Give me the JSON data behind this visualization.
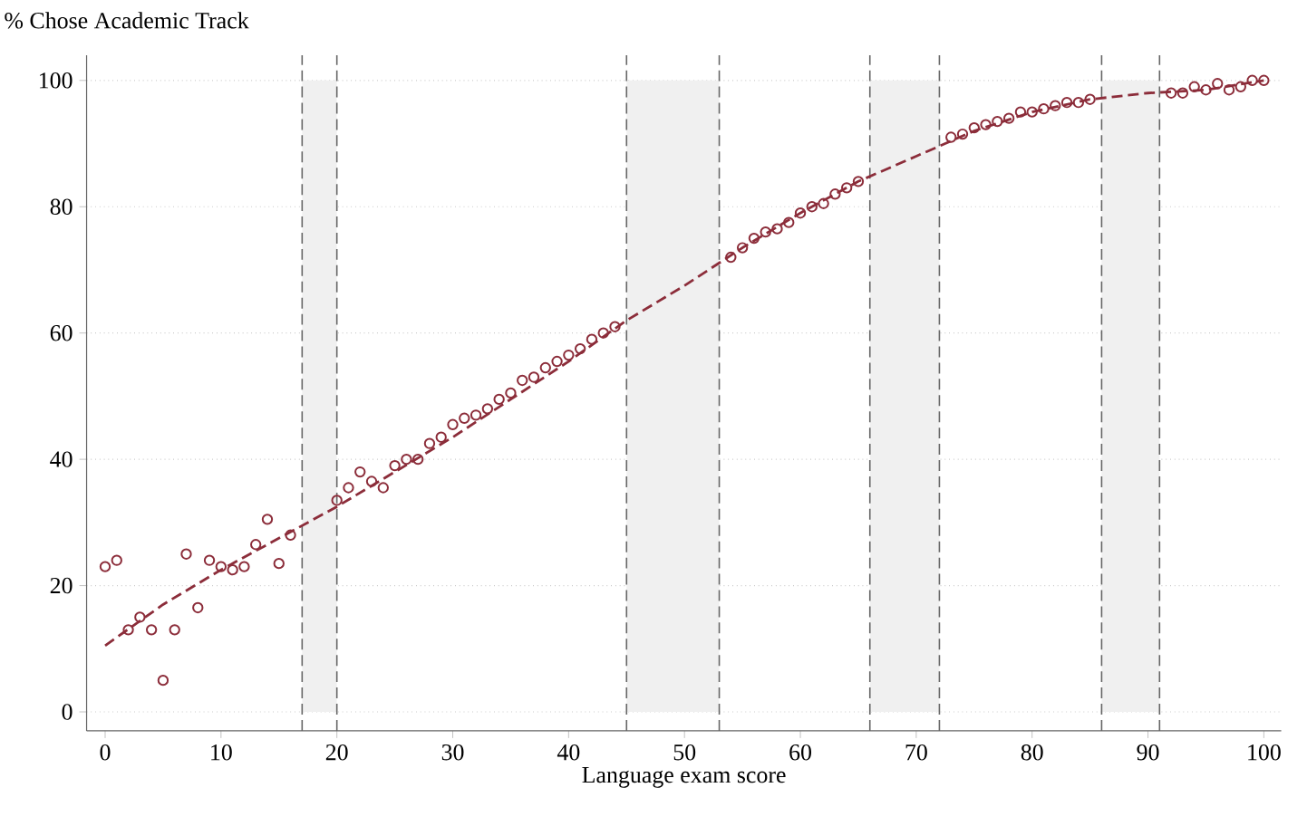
{
  "chart_data": {
    "type": "scatter",
    "ylabel": "% Chose Academic Track",
    "xlabel": "Language exam score",
    "xlim": [
      -1.6,
      101.5
    ],
    "ylim": [
      -3,
      104
    ],
    "xticks": [
      0,
      10,
      20,
      30,
      40,
      50,
      60,
      70,
      80,
      90,
      100
    ],
    "yticks": [
      0,
      20,
      40,
      60,
      80,
      100
    ],
    "grid": "y",
    "series": [
      {
        "marker": "circle",
        "color": "#8c2d3a",
        "x": [
          0,
          1,
          2,
          3,
          4,
          5,
          6,
          7,
          8,
          9,
          10,
          11,
          12,
          13,
          14,
          15,
          16,
          20,
          21,
          22,
          23,
          24,
          25,
          26,
          27,
          28,
          29,
          30,
          31,
          32,
          33,
          34,
          35,
          36,
          37,
          38,
          39,
          40,
          41,
          42,
          43,
          44,
          54,
          55,
          56,
          57,
          58,
          59,
          60,
          61,
          62,
          63,
          64,
          65,
          73,
          74,
          75,
          76,
          77,
          78,
          79,
          80,
          81,
          82,
          83,
          84,
          85,
          92,
          93,
          94,
          95,
          96,
          97,
          98,
          99,
          100
        ],
        "values": [
          23,
          24,
          13,
          15,
          13,
          5,
          13,
          25,
          16.5,
          24,
          23,
          22.5,
          23,
          26.5,
          30.5,
          23.5,
          28,
          33.5,
          35.5,
          38,
          36.5,
          35.5,
          39,
          40,
          40,
          42.5,
          43.5,
          45.5,
          46.5,
          47,
          48,
          49.5,
          50.5,
          52.5,
          53,
          54.5,
          55.5,
          56.5,
          57.5,
          59,
          60,
          61,
          72,
          73.5,
          75,
          76,
          76.5,
          77.5,
          79,
          80,
          80.5,
          82,
          83,
          84,
          91,
          91.5,
          92.5,
          93,
          93.5,
          94,
          95,
          95,
          95.5,
          96,
          96.5,
          96.5,
          97,
          98,
          98,
          99,
          98.5,
          99.5,
          98.5,
          99,
          100,
          100
        ]
      },
      {
        "type": "line",
        "line_style": "dashed",
        "color": "#8c2d3a",
        "x": [
          0,
          5,
          10,
          15,
          20,
          25,
          30,
          35,
          40,
          45,
          50,
          55,
          60,
          65,
          70,
          75,
          80,
          85,
          90,
          95,
          100
        ],
        "values": [
          10.5,
          17,
          22.5,
          27.5,
          32.5,
          38,
          43.5,
          49.5,
          55.5,
          62,
          67.5,
          73.5,
          79,
          84,
          88,
          92,
          95,
          97,
          98,
          98.5,
          100
        ]
      }
    ],
    "bands": [
      {
        "axis": "x",
        "from": 17,
        "to": 20,
        "color": "#f0f0f0"
      },
      {
        "axis": "x",
        "from": 45,
        "to": 53,
        "color": "#f0f0f0"
      },
      {
        "axis": "x",
        "from": 66,
        "to": 72,
        "color": "#f0f0f0"
      },
      {
        "axis": "x",
        "from": 86,
        "to": 91,
        "color": "#f0f0f0"
      }
    ],
    "ref_lines": [
      {
        "axis": "x",
        "value": 17,
        "line_style": "dashed",
        "color": "#666666"
      },
      {
        "axis": "x",
        "value": 20,
        "line_style": "dashed",
        "color": "#666666"
      },
      {
        "axis": "x",
        "value": 45,
        "line_style": "dashed",
        "color": "#666666"
      },
      {
        "axis": "x",
        "value": 53,
        "line_style": "dashed",
        "color": "#666666"
      },
      {
        "axis": "x",
        "value": 66,
        "line_style": "dashed",
        "color": "#666666"
      },
      {
        "axis": "x",
        "value": 72,
        "line_style": "dashed",
        "color": "#666666"
      },
      {
        "axis": "x",
        "value": 86,
        "line_style": "dashed",
        "color": "#666666"
      },
      {
        "axis": "x",
        "value": 91,
        "line_style": "dashed",
        "color": "#666666"
      }
    ]
  }
}
